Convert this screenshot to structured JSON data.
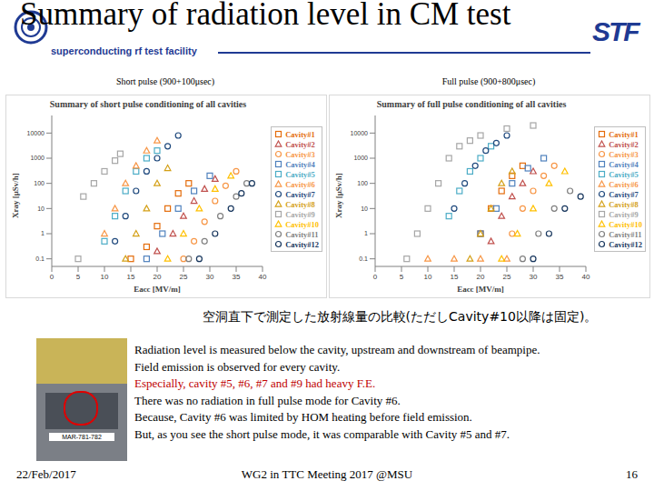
{
  "slide": {
    "title": "Summary of radiation level in CM test",
    "subtitle": "superconducting rf test facility",
    "logo": "STF",
    "caption": "空洞直下で測定した放射線量の比較(ただしCavity#10以降は固定)。",
    "photo_label": "MAR-781-782",
    "notes": [
      {
        "text": "Radiation level is measured below the cavity, upstream and downstream of beampipe.",
        "color": "#000000"
      },
      {
        "text": "Field emission is observed for every cavity.",
        "color": "#000000"
      },
      {
        "text": "Especially, cavity #5, #6, #7 and #9 had heavy F.E.",
        "color": "#c00000"
      },
      {
        "text": "There was no radiation in full pulse mode for Cavity #6.",
        "color": "#000000"
      },
      {
        "text": "Because, Cavity #6 was limited by HOM heating before field emission.",
        "color": "#000000"
      },
      {
        "text": "But, as you see the short pulse mode, it was comparable with Cavity #5 and #7.",
        "color": "#000000"
      }
    ],
    "footer": {
      "date": "22/Feb/2017",
      "event": "WG2 in TTC Meeting 2017 @MSU",
      "page": "16"
    }
  },
  "chart_data": [
    {
      "type": "scatter",
      "subtitle": "Short pulse (900+100μsec)",
      "title": "Summary of short pulse conditioning of all cavities",
      "x_label": "Eacc [MV/m]",
      "y_label": "Xray [μSv/h]",
      "log": "y",
      "grid": false,
      "legend": "right",
      "xlim": [
        0,
        40
      ],
      "xticks": [
        0,
        5,
        10,
        15,
        20,
        25,
        30,
        35,
        40
      ],
      "ylim": [
        0.05,
        50000
      ],
      "yticks": [
        0.1,
        1,
        10,
        100,
        1000,
        10000
      ],
      "series": [
        {
          "name": "Cavity#1",
          "color": "#e46c0a",
          "marker": "square",
          "x": [
            15,
            18,
            20,
            22,
            24,
            26
          ],
          "values": [
            0.1,
            0.3,
            2,
            10,
            40,
            100
          ]
        },
        {
          "name": "Cavity#2",
          "color": "#c0504d",
          "marker": "triangle",
          "x": [
            20,
            23,
            25,
            27,
            29,
            31
          ],
          "values": [
            0.2,
            1,
            5,
            20,
            60,
            150
          ]
        },
        {
          "name": "Cavity#3",
          "color": "#f79646",
          "marker": "circle",
          "x": [
            25,
            27,
            29,
            31,
            33,
            35
          ],
          "values": [
            0.1,
            0.5,
            3,
            20,
            80,
            300
          ]
        },
        {
          "name": "Cavity#4",
          "color": "#4f81bd",
          "marker": "square",
          "x": [
            18,
            21,
            24,
            27,
            30
          ],
          "values": [
            0.1,
            1,
            10,
            50,
            200
          ]
        },
        {
          "name": "Cavity#5",
          "color": "#4bacc6",
          "marker": "square",
          "x": [
            10,
            12,
            14,
            16,
            18,
            20
          ],
          "values": [
            0.5,
            5,
            50,
            300,
            1000,
            2000
          ]
        },
        {
          "name": "Cavity#6",
          "color": "#f79646",
          "marker": "triangle",
          "x": [
            10,
            12,
            14,
            16,
            18,
            20
          ],
          "values": [
            1,
            10,
            100,
            500,
            2000,
            5000
          ]
        },
        {
          "name": "Cavity#7",
          "color": "#1f497d",
          "marker": "circle",
          "x": [
            12,
            14,
            16,
            18,
            20,
            22,
            24
          ],
          "values": [
            0.5,
            5,
            50,
            300,
            1000,
            3000,
            8000
          ]
        },
        {
          "name": "Cavity#8",
          "color": "#d4a017",
          "marker": "triangle",
          "x": [
            14,
            16,
            18,
            20,
            22
          ],
          "values": [
            0.1,
            1,
            10,
            100,
            400
          ]
        },
        {
          "name": "Cavity#9",
          "color": "#a6a6a6",
          "marker": "square",
          "x": [
            5,
            6,
            8,
            10,
            12,
            13
          ],
          "values": [
            0.1,
            30,
            100,
            300,
            800,
            1500
          ]
        },
        {
          "name": "Cavity#10",
          "color": "#ffc000",
          "marker": "triangle",
          "x": [
            22,
            25,
            28,
            31,
            34
          ],
          "values": [
            0.1,
            1,
            10,
            60,
            200
          ]
        },
        {
          "name": "Cavity#11",
          "color": "#7f7f7f",
          "marker": "circle",
          "x": [
            26,
            29,
            32,
            35,
            37
          ],
          "values": [
            0.1,
            0.5,
            5,
            30,
            100
          ]
        },
        {
          "name": "Cavity#12",
          "color": "#17365d",
          "marker": "circle",
          "x": [
            28,
            31,
            34,
            36,
            38
          ],
          "values": [
            0.1,
            1,
            10,
            40,
            100
          ]
        }
      ]
    },
    {
      "type": "scatter",
      "subtitle": "Full pulse (900+800μsec)",
      "title": "Summary of full pulse conditioning of all cavities",
      "x_label": "Eacc [MV/m]",
      "y_label": "Xray [μSv/h]",
      "log": "y",
      "grid": false,
      "legend": "right",
      "xlim": [
        0,
        40
      ],
      "xticks": [
        0,
        5,
        10,
        15,
        20,
        25,
        30,
        35,
        40
      ],
      "ylim": [
        0.05,
        50000
      ],
      "yticks": [
        0.1,
        1,
        10,
        100,
        1000,
        10000
      ],
      "series": [
        {
          "name": "Cavity#1",
          "color": "#e46c0a",
          "marker": "square",
          "x": [
            20,
            22,
            24,
            26,
            28
          ],
          "values": [
            1,
            10,
            50,
            200,
            500
          ]
        },
        {
          "name": "Cavity#2",
          "color": "#c0504d",
          "marker": "triangle",
          "x": [
            22,
            24,
            26,
            28,
            30
          ],
          "values": [
            0.5,
            5,
            30,
            100,
            300
          ]
        },
        {
          "name": "Cavity#3",
          "color": "#f79646",
          "marker": "circle",
          "x": [
            26,
            28,
            30,
            32,
            34
          ],
          "values": [
            1,
            10,
            50,
            200,
            500
          ]
        },
        {
          "name": "Cavity#4",
          "color": "#4f81bd",
          "marker": "square",
          "x": [
            20,
            23,
            26,
            29,
            32
          ],
          "values": [
            1,
            10,
            100,
            400,
            1000
          ]
        },
        {
          "name": "Cavity#5",
          "color": "#4bacc6",
          "marker": "square",
          "x": [
            14,
            16,
            18,
            20,
            22
          ],
          "values": [
            5,
            50,
            300,
            1000,
            3000
          ]
        },
        {
          "name": "Cavity#6",
          "color": "#f79646",
          "marker": "triangle",
          "x": [
            10,
            15,
            20,
            25
          ],
          "values": [
            0.1,
            0.1,
            0.1,
            0.1
          ]
        },
        {
          "name": "Cavity#7",
          "color": "#1f497d",
          "marker": "circle",
          "x": [
            15,
            17,
            19,
            21,
            23,
            25
          ],
          "values": [
            10,
            100,
            500,
            2000,
            4000,
            8000
          ]
        },
        {
          "name": "Cavity#8",
          "color": "#d4a017",
          "marker": "triangle",
          "x": [
            18,
            20,
            22,
            24,
            26
          ],
          "values": [
            0.1,
            1,
            10,
            100,
            300
          ]
        },
        {
          "name": "Cavity#9",
          "color": "#a6a6a6",
          "marker": "square",
          "x": [
            6,
            8,
            10,
            12,
            14,
            16,
            18,
            20,
            25,
            30
          ],
          "values": [
            0.1,
            1,
            10,
            100,
            1000,
            3000,
            5000,
            8000,
            15000,
            20000
          ]
        },
        {
          "name": "Cavity#10",
          "color": "#ffc000",
          "marker": "triangle",
          "x": [
            24,
            27,
            30,
            33,
            36
          ],
          "values": [
            0.1,
            1,
            10,
            100,
            300
          ]
        },
        {
          "name": "Cavity#11",
          "color": "#7f7f7f",
          "marker": "circle",
          "x": [
            28,
            31,
            34,
            37
          ],
          "values": [
            0.1,
            1,
            10,
            50
          ]
        },
        {
          "name": "Cavity#12",
          "color": "#17365d",
          "marker": "circle",
          "x": [
            30,
            33,
            36,
            39
          ],
          "values": [
            0.1,
            1,
            10,
            30
          ]
        }
      ]
    }
  ]
}
